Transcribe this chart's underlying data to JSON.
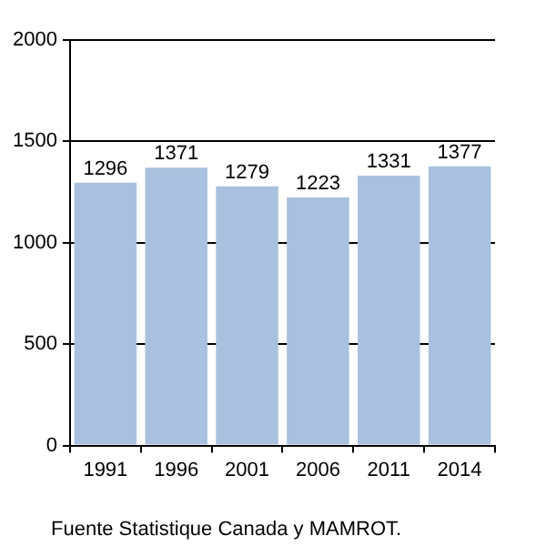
{
  "chart_data": {
    "type": "bar",
    "categories": [
      "1991",
      "1996",
      "2001",
      "2006",
      "2011",
      "2014"
    ],
    "values": [
      1296,
      1371,
      1279,
      1223,
      1331,
      1377
    ],
    "color": "#a9c1de",
    "data_labels": true,
    "ylim": [
      0,
      2000
    ],
    "yticks": [
      0,
      500,
      1000,
      1500,
      2000
    ],
    "grid": "y",
    "annotations": [
      "Fuente Statistique Canada y MAMROT."
    ]
  }
}
